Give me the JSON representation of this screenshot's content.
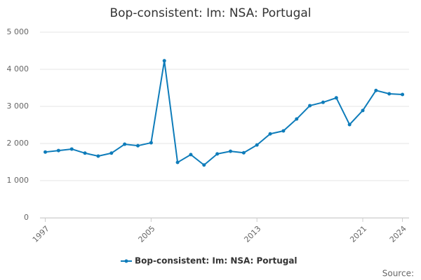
{
  "chart_data": {
    "type": "line",
    "title": "Bop-consistent: Im: NSA: Portugal",
    "source": "Source:",
    "x": [
      1997,
      1998,
      1999,
      2000,
      2001,
      2002,
      2003,
      2004,
      2005,
      2006,
      2007,
      2008,
      2009,
      2010,
      2011,
      2012,
      2013,
      2014,
      2015,
      2016,
      2017,
      2018,
      2019,
      2020,
      2021,
      2022,
      2023,
      2024
    ],
    "series": [
      {
        "name": "Bop-consistent: Im: NSA: Portugal",
        "color": "#0e7cba",
        "values": [
          1770,
          1810,
          1850,
          1740,
          1660,
          1740,
          1980,
          1940,
          2020,
          4230,
          1490,
          1700,
          1420,
          1720,
          1790,
          1750,
          1960,
          2260,
          2340,
          2660,
          3020,
          3110,
          3230,
          2510,
          2890,
          3430,
          3340,
          3320
        ]
      }
    ],
    "xlim": [
      1996.6,
      2024.5
    ],
    "xticks": [
      1997,
      2005,
      2013,
      2021,
      2024
    ],
    "ylim": [
      0,
      5000
    ],
    "yticks": [
      0,
      {
        "value": 1000,
        "label": "1 000"
      },
      {
        "value": 2000,
        "label": "2 000"
      },
      {
        "value": 3000,
        "label": "3 000"
      },
      {
        "value": 4000,
        "label": "4 000"
      },
      {
        "value": 5000,
        "label": "5 000"
      }
    ],
    "grid": true
  }
}
